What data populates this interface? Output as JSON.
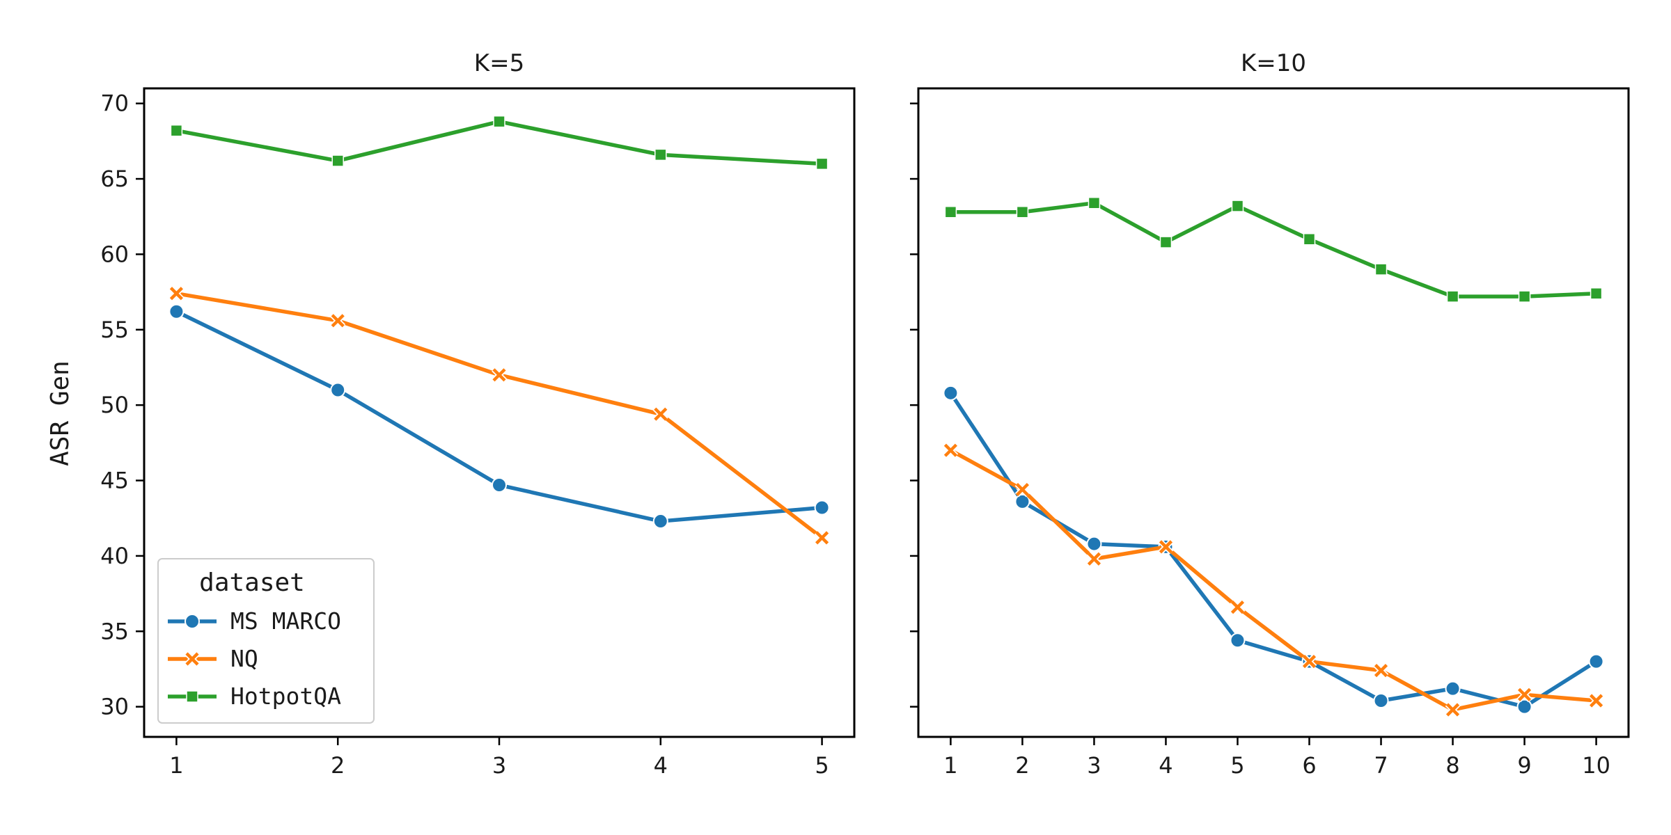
{
  "chart_data": {
    "type": "line",
    "ylabel": "ASR Gen",
    "ylim": [
      28,
      71
    ],
    "yticks": [
      30,
      35,
      40,
      45,
      50,
      55,
      60,
      65,
      70
    ],
    "legend": {
      "title": "dataset",
      "placement": "lower-left"
    },
    "series_styles": [
      {
        "name": "MS MARCO",
        "color": "#1f77b4",
        "marker": "circle"
      },
      {
        "name": "NQ",
        "color": "#ff7f0e",
        "marker": "x"
      },
      {
        "name": "HotpotQA",
        "color": "#2ca02c",
        "marker": "square"
      }
    ],
    "panels": [
      {
        "title": "K=5",
        "x": [
          1,
          2,
          3,
          4,
          5
        ],
        "series": [
          {
            "name": "MS MARCO",
            "values": [
              56.2,
              51.0,
              44.7,
              42.3,
              43.2
            ]
          },
          {
            "name": "NQ",
            "values": [
              57.4,
              55.6,
              52.0,
              49.4,
              41.2
            ]
          },
          {
            "name": "HotpotQA",
            "values": [
              68.2,
              66.2,
              68.8,
              66.6,
              66.0
            ]
          }
        ]
      },
      {
        "title": "K=10",
        "x": [
          1,
          2,
          3,
          4,
          5,
          6,
          7,
          8,
          9,
          10
        ],
        "series": [
          {
            "name": "MS MARCO",
            "values": [
              50.8,
              43.6,
              40.8,
              40.6,
              34.4,
              33.0,
              30.4,
              31.2,
              30.0,
              33.0
            ]
          },
          {
            "name": "NQ",
            "values": [
              47.0,
              44.4,
              39.8,
              40.6,
              36.6,
              33.0,
              32.4,
              29.8,
              30.8,
              30.4
            ]
          },
          {
            "name": "HotpotQA",
            "values": [
              62.8,
              62.8,
              63.4,
              60.8,
              63.2,
              61.0,
              59.0,
              57.2,
              57.2,
              57.4
            ]
          }
        ]
      }
    ]
  }
}
